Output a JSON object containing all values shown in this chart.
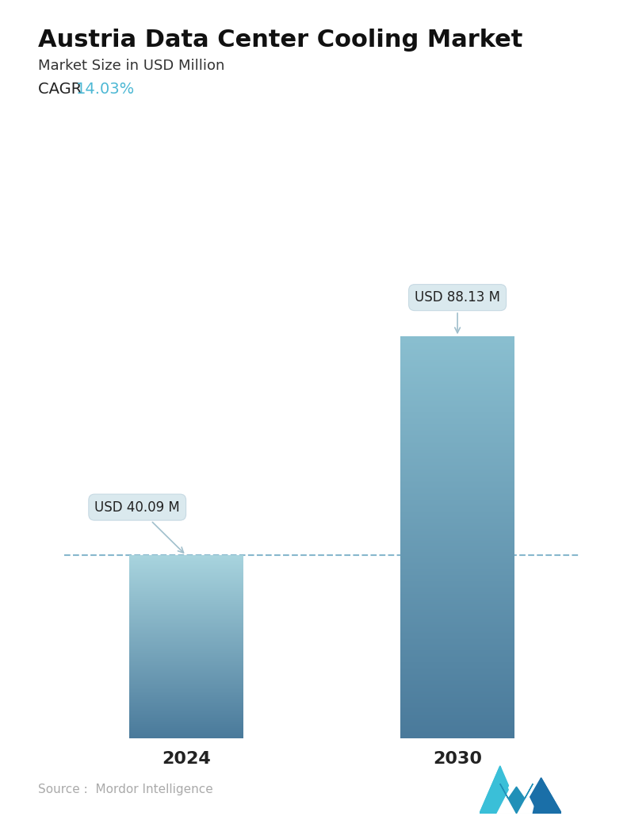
{
  "title": "Austria Data Center Cooling Market",
  "subtitle": "Market Size in USD Million",
  "cagr_label": "CAGR  ",
  "cagr_value": "14.03%",
  "cagr_color": "#4db8d4",
  "categories": [
    "2024",
    "2030"
  ],
  "values": [
    40.09,
    88.13
  ],
  "labels": [
    "USD 40.09 M",
    "USD 88.13 M"
  ],
  "bar_top_color_0": "#a8d4de",
  "bar_bottom_color_0": "#4a7a9b",
  "bar_top_color_1": "#8abfd0",
  "bar_bottom_color_1": "#4a7a9b",
  "dashed_line_color": "#7ab0c8",
  "dashed_line_y": 40.09,
  "source_text": "Source :  Mordor Intelligence",
  "source_color": "#aaaaaa",
  "background_color": "#ffffff",
  "title_fontsize": 22,
  "subtitle_fontsize": 13,
  "cagr_fontsize": 14,
  "xlabel_fontsize": 16,
  "label_fontsize": 12,
  "ylim": [
    0,
    108
  ],
  "bar_width": 0.42
}
